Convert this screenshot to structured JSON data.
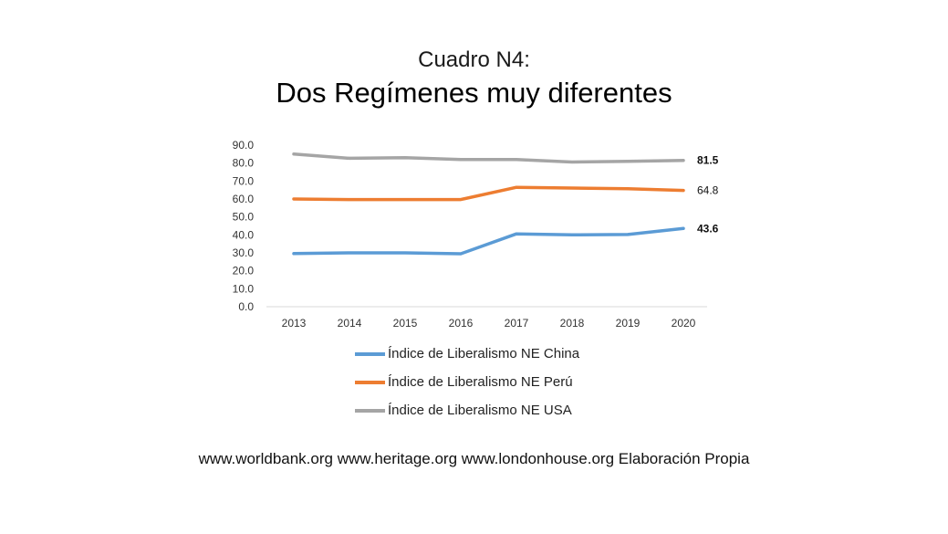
{
  "header": {
    "subtitle": "Cuadro N4:",
    "title": "Dos Regímenes muy diferentes"
  },
  "chart_data": {
    "type": "line",
    "categories": [
      "2013",
      "2014",
      "2015",
      "2016",
      "2017",
      "2018",
      "2019",
      "2020"
    ],
    "ylim": [
      0,
      90
    ],
    "yticks": [
      "0.0",
      "10.0",
      "20.0",
      "30.0",
      "40.0",
      "50.0",
      "60.0",
      "70.0",
      "80.0",
      "90.0"
    ],
    "grid": false,
    "legend_position": "bottom",
    "series": [
      {
        "name": "Índice de Liberalismo NE China",
        "color": "#5b9bd5",
        "values": [
          29.6,
          30.0,
          30.0,
          29.5,
          40.6,
          40.0,
          40.2,
          43.6
        ],
        "end_label": "43.6",
        "end_label_bold": true
      },
      {
        "name": "Índice de Liberalismo NE Perú",
        "color": "#ed7d31",
        "values": [
          60.0,
          59.7,
          59.7,
          59.7,
          66.5,
          66.1,
          65.7,
          64.8
        ],
        "end_label": "64.8",
        "end_label_bold": false
      },
      {
        "name": "Índice de Liberalismo NE USA",
        "color": "#a5a5a5",
        "values": [
          85.0,
          82.7,
          83.0,
          82.0,
          82.0,
          80.6,
          81.0,
          81.5
        ],
        "end_label": "81.5",
        "end_label_bold": true
      }
    ]
  },
  "footer": {
    "source": "www.worldbank.org www.heritage.org www.londonhouse.org Elaboración Propia"
  }
}
